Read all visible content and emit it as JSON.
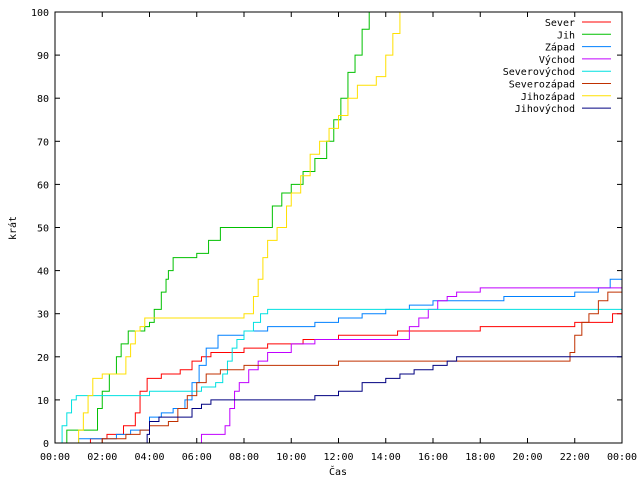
{
  "chart_data": {
    "type": "line",
    "title": "",
    "xlabel": "Čas",
    "ylabel": "krát",
    "xlim": [
      0,
      24
    ],
    "ylim": [
      0,
      100
    ],
    "x_ticks": [
      0,
      2,
      4,
      6,
      8,
      10,
      12,
      14,
      16,
      18,
      20,
      22,
      24
    ],
    "x_tick_labels": [
      "00:00",
      "02:00",
      "04:00",
      "06:00",
      "08:00",
      "10:00",
      "12:00",
      "14:00",
      "16:00",
      "18:00",
      "20:00",
      "22:00",
      "00:00"
    ],
    "y_ticks": [
      0,
      10,
      20,
      30,
      40,
      50,
      60,
      70,
      80,
      90,
      100
    ],
    "y_tick_labels": [
      "0",
      "10",
      "20",
      "30",
      "40",
      "50",
      "60",
      "70",
      "80",
      "90",
      "100"
    ],
    "grid": false,
    "legend_position": "top-right",
    "series": [
      {
        "name": "Sever",
        "color": "#ff0000",
        "x": [
          0.85,
          1.5,
          2.2,
          2.9,
          3.4,
          3.6,
          3.9,
          4.5,
          5.3,
          5.8,
          6.2,
          6.6,
          8.0,
          9.0,
          10.5,
          12.0,
          14.5,
          16.0,
          18.0,
          20.5,
          22.0,
          23.0,
          23.6,
          24.0
        ],
        "y": [
          0,
          1,
          2,
          4,
          7,
          12,
          15,
          16,
          17,
          19,
          20,
          21,
          22,
          23,
          24,
          25,
          26,
          26,
          27,
          27,
          28,
          28,
          30,
          30
        ]
      },
      {
        "name": "Jih",
        "color": "#00c000",
        "x": [
          0.3,
          0.5,
          1.6,
          1.8,
          2.0,
          2.3,
          2.6,
          2.8,
          3.1,
          3.5,
          3.8,
          4.0,
          4.2,
          4.5,
          4.7,
          4.8,
          5.0,
          5.5,
          6.0,
          6.5,
          7.0,
          8.0,
          8.5,
          9.2,
          9.6,
          10.0,
          10.5,
          11.0,
          11.5,
          11.8,
          12.1,
          12.4,
          12.7,
          13.0,
          13.3
        ],
        "y": [
          0,
          3,
          3,
          8,
          12,
          16,
          20,
          23,
          26,
          26,
          27,
          28,
          31,
          35,
          38,
          40,
          43,
          43,
          44,
          47,
          50,
          50,
          50,
          55,
          58,
          60,
          63,
          66,
          70,
          75,
          80,
          86,
          90,
          96,
          100
        ]
      },
      {
        "name": "Západ",
        "color": "#0080ff",
        "x": [
          0.6,
          1.0,
          2.0,
          2.6,
          3.2,
          4.0,
          4.5,
          5.0,
          5.5,
          5.8,
          6.1,
          6.4,
          6.9,
          7.5,
          8.0,
          9.0,
          10.0,
          11.0,
          12.0,
          13.0,
          14.0,
          15.0,
          16.0,
          17.0,
          18.0,
          19.0,
          20.0,
          21.0,
          22.0,
          23.0,
          23.5,
          24.0
        ],
        "y": [
          0,
          1,
          1,
          2,
          3,
          6,
          7,
          8,
          10,
          14,
          18,
          22,
          25,
          25,
          26,
          27,
          27,
          28,
          29,
          30,
          31,
          32,
          33,
          33,
          33,
          34,
          34,
          34,
          35,
          36,
          38,
          40
        ]
      },
      {
        "name": "Východ",
        "color": "#c000ff",
        "x": [
          5.6,
          6.2,
          6.8,
          7.2,
          7.4,
          7.6,
          7.8,
          8.2,
          8.6,
          9.0,
          10.0,
          11.0,
          12.0,
          13.0,
          14.5,
          15.0,
          15.4,
          15.8,
          16.2,
          16.6,
          17.0,
          18.0,
          19.0,
          20.0,
          22.0,
          23.0,
          24.0
        ],
        "y": [
          0,
          2,
          2,
          4,
          8,
          12,
          14,
          17,
          19,
          21,
          23,
          24,
          24,
          24,
          24,
          27,
          29,
          31,
          33,
          34,
          35,
          36,
          36,
          36,
          36,
          36,
          36
        ]
      },
      {
        "name": "Severovýchod",
        "color": "#00e0e0",
        "x": [
          0.0,
          0.3,
          0.5,
          0.7,
          0.9,
          1.5,
          2.0,
          3.0,
          4.0,
          5.0,
          5.8,
          6.2,
          6.8,
          7.1,
          7.3,
          7.5,
          7.7,
          8.0,
          8.4,
          8.7,
          9.0,
          10.0,
          12.0,
          14.0,
          16.0,
          18.0,
          20.0,
          22.0,
          24.0
        ],
        "y": [
          0,
          4,
          7,
          10,
          11,
          11,
          11,
          11,
          12,
          12,
          12,
          13,
          14,
          16,
          19,
          22,
          24,
          26,
          28,
          30,
          31,
          31,
          31,
          31,
          31,
          31,
          31,
          31,
          31
        ]
      },
      {
        "name": "Severozápad",
        "color": "#c03000",
        "x": [
          1.0,
          2.0,
          3.0,
          3.6,
          4.0,
          4.8,
          5.2,
          5.6,
          6.0,
          6.4,
          7.0,
          8.0,
          10.0,
          12.0,
          14.0,
          16.0,
          18.0,
          20.0,
          21.5,
          21.8,
          22.0,
          22.3,
          22.6,
          23.0,
          23.4,
          24.0
        ],
        "y": [
          0,
          1,
          2,
          3,
          4,
          5,
          8,
          11,
          14,
          16,
          17,
          18,
          18,
          19,
          19,
          19,
          19,
          19,
          19,
          21,
          25,
          28,
          30,
          33,
          35,
          36
        ]
      },
      {
        "name": "Jihozápad",
        "color": "#ffe000",
        "x": [
          0.8,
          1.0,
          1.2,
          1.4,
          1.6,
          2.0,
          2.6,
          3.0,
          3.2,
          3.4,
          3.6,
          3.8,
          4.0,
          4.5,
          5.0,
          6.0,
          7.0,
          8.0,
          8.4,
          8.6,
          8.8,
          9.0,
          9.4,
          9.8,
          10.0,
          10.4,
          10.8,
          11.2,
          11.6,
          12.0,
          12.4,
          12.8,
          13.2,
          13.6,
          14.0,
          14.3,
          14.6
        ],
        "y": [
          0,
          3,
          7,
          11,
          15,
          16,
          16,
          20,
          23,
          26,
          27,
          29,
          29,
          29,
          29,
          29,
          29,
          30,
          34,
          38,
          43,
          47,
          50,
          55,
          58,
          62,
          67,
          70,
          73,
          76,
          80,
          83,
          83,
          85,
          90,
          95,
          100
        ]
      },
      {
        "name": "Jihovýchod",
        "color": "#000080",
        "x": [
          0.4,
          3.6,
          3.9,
          4.0,
          4.4,
          4.8,
          5.0,
          5.8,
          6.2,
          6.6,
          7.0,
          8.0,
          9.0,
          10.0,
          11.0,
          12.0,
          13.0,
          14.0,
          14.6,
          15.2,
          16.0,
          16.6,
          17.0,
          18.0,
          20.0,
          22.0,
          24.0
        ],
        "y": [
          0,
          0,
          2,
          5,
          6,
          6,
          6,
          8,
          9,
          10,
          10,
          10,
          10,
          10,
          11,
          12,
          14,
          15,
          16,
          17,
          18,
          19,
          20,
          20,
          20,
          20,
          20
        ]
      }
    ]
  }
}
